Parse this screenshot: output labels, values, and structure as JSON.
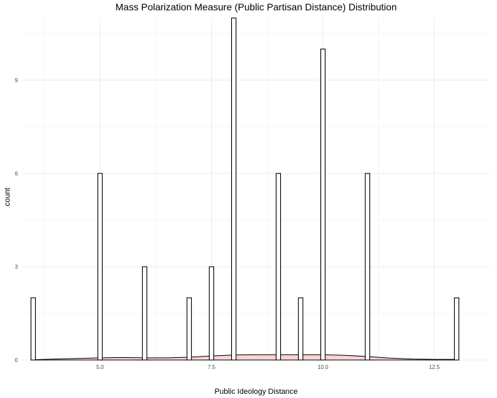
{
  "chart_data": {
    "type": "histogram",
    "title": "Mass Polarization Measure (Public Partisan Distance) Distribution",
    "xlabel": "Public Ideology Distance",
    "ylabel": "count",
    "xlim": [
      3.25,
      13.75
    ],
    "ylim": [
      0,
      11
    ],
    "x_ticks": [
      5.0,
      7.5,
      10.0,
      12.5
    ],
    "x_tick_labels": [
      "5.0",
      "7.5",
      "10.0",
      "12.5"
    ],
    "y_ticks": [
      0,
      3,
      6,
      9
    ],
    "y_tick_labels": [
      "0",
      "3",
      "6",
      "9"
    ],
    "grid": true,
    "bins": [
      {
        "x": 3.5,
        "count": 2
      },
      {
        "x": 5.0,
        "count": 6
      },
      {
        "x": 6.0,
        "count": 3
      },
      {
        "x": 7.0,
        "count": 2
      },
      {
        "x": 7.5,
        "count": 3
      },
      {
        "x": 8.0,
        "count": 11
      },
      {
        "x": 9.0,
        "count": 6
      },
      {
        "x": 9.5,
        "count": 2
      },
      {
        "x": 10.0,
        "count": 10
      },
      {
        "x": 11.0,
        "count": 6
      },
      {
        "x": 13.0,
        "count": 2
      }
    ],
    "bin_width": 0.1,
    "density": {
      "x": [
        3.5,
        4.0,
        4.5,
        5.0,
        5.5,
        6.0,
        6.5,
        7.0,
        7.5,
        8.0,
        8.5,
        9.0,
        9.5,
        10.0,
        10.5,
        11.0,
        11.5,
        12.0,
        12.5,
        13.0
      ],
      "y": [
        0.01,
        0.03,
        0.05,
        0.07,
        0.08,
        0.07,
        0.07,
        0.09,
        0.13,
        0.16,
        0.17,
        0.17,
        0.17,
        0.17,
        0.15,
        0.11,
        0.06,
        0.03,
        0.02,
        0.02
      ]
    },
    "density_fill": "#f6c7c7"
  }
}
